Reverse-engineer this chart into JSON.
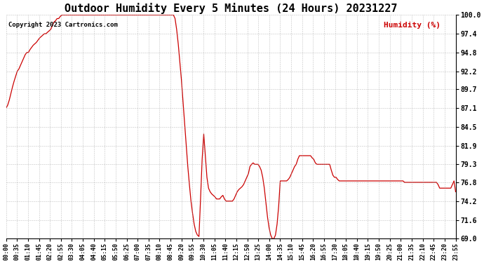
{
  "title": "Outdoor Humidity Every 5 Minutes (24 Hours) 20231227",
  "copyright": "Copyright 2023 Cartronics.com",
  "ylabel": "Humidity (%)",
  "line_color": "#cc0000",
  "bg_color": "#ffffff",
  "grid_color": "#999999",
  "title_fontsize": 11,
  "yticks": [
    69.0,
    71.6,
    74.2,
    76.8,
    79.3,
    81.9,
    84.5,
    87.1,
    89.7,
    92.2,
    94.8,
    97.4,
    100.0
  ],
  "ylim": [
    69.0,
    100.0
  ],
  "humidity_values": [
    87.1,
    87.5,
    88.2,
    89.1,
    90.0,
    90.8,
    91.5,
    92.2,
    92.5,
    93.0,
    93.5,
    94.0,
    94.5,
    94.8,
    94.8,
    95.2,
    95.5,
    95.8,
    96.0,
    96.2,
    96.5,
    96.8,
    97.0,
    97.2,
    97.4,
    97.4,
    97.6,
    97.8,
    98.0,
    98.5,
    99.0,
    99.2,
    99.5,
    99.5,
    99.8,
    100.0,
    100.0,
    100.0,
    100.0,
    100.0,
    100.0,
    100.0,
    100.0,
    100.0,
    100.0,
    100.0,
    100.0,
    100.0,
    100.0,
    100.0,
    100.0,
    100.0,
    100.0,
    100.0,
    100.0,
    100.0,
    100.0,
    100.0,
    100.0,
    100.0,
    100.0,
    100.0,
    100.0,
    100.0,
    100.0,
    100.0,
    100.0,
    100.0,
    100.0,
    100.0,
    100.0,
    100.0,
    100.0,
    100.0,
    100.0,
    100.0,
    100.0,
    100.0,
    100.0,
    100.0,
    100.0,
    100.0,
    100.0,
    100.0,
    100.0,
    100.0,
    100.0,
    100.0,
    100.0,
    100.0,
    100.0,
    100.0,
    100.0,
    100.0,
    100.0,
    100.0,
    100.0,
    100.0,
    100.0,
    100.0,
    100.0,
    100.0,
    100.0,
    100.0,
    100.0,
    100.0,
    99.5,
    98.0,
    96.0,
    93.5,
    91.0,
    88.0,
    85.0,
    82.0,
    79.0,
    76.5,
    74.2,
    72.5,
    71.0,
    70.0,
    69.5,
    69.3,
    74.5,
    80.0,
    83.5,
    80.5,
    77.5,
    76.0,
    75.5,
    75.2,
    75.0,
    74.8,
    74.5,
    74.5,
    74.5,
    74.8,
    75.0,
    74.5,
    74.2,
    74.2,
    74.2,
    74.2,
    74.2,
    74.5,
    75.0,
    75.5,
    75.8,
    76.0,
    76.2,
    76.5,
    77.0,
    77.5,
    78.0,
    79.0,
    79.3,
    79.5,
    79.3,
    79.3,
    79.3,
    79.0,
    78.5,
    77.5,
    76.0,
    74.0,
    72.0,
    70.5,
    69.5,
    69.0,
    69.0,
    69.5,
    71.0,
    73.5,
    77.0,
    77.0,
    77.0,
    77.0,
    77.0,
    77.2,
    77.5,
    78.0,
    78.5,
    79.0,
    79.3,
    80.0,
    80.5,
    80.5,
    80.5,
    80.5,
    80.5,
    80.5,
    80.5,
    80.5,
    80.2,
    80.0,
    79.5,
    79.3,
    79.3,
    79.3,
    79.3,
    79.3,
    79.3,
    79.3,
    79.3,
    79.3,
    78.5,
    77.8,
    77.5,
    77.5,
    77.2,
    77.0,
    77.0,
    77.0,
    77.0,
    77.0,
    77.0,
    77.0,
    77.0,
    77.0,
    77.0,
    77.0,
    77.0,
    77.0,
    77.0,
    77.0,
    77.0,
    77.0,
    77.0,
    77.0,
    77.0,
    77.0,
    77.0,
    77.0,
    77.0,
    77.0,
    77.0,
    77.0,
    77.0,
    77.0,
    77.0,
    77.0,
    77.0,
    77.0,
    77.0,
    77.0,
    77.0,
    77.0,
    77.0,
    77.0,
    77.0,
    77.0,
    76.8,
    76.8,
    76.8,
    76.8,
    76.8,
    76.8,
    76.8,
    76.8,
    76.8,
    76.8,
    76.8,
    76.8,
    76.8,
    76.8,
    76.8,
    76.8,
    76.8,
    76.8,
    76.8,
    76.8,
    76.8,
    76.5,
    76.0,
    76.0,
    76.0,
    76.0,
    76.0,
    76.0,
    76.0,
    76.0,
    76.5,
    77.0,
    75.5
  ],
  "xtick_labels": [
    "00:00",
    "00:35",
    "01:10",
    "01:45",
    "02:20",
    "02:55",
    "03:30",
    "04:05",
    "04:40",
    "05:15",
    "05:50",
    "06:25",
    "07:00",
    "07:35",
    "08:10",
    "08:45",
    "09:20",
    "09:55",
    "10:30",
    "11:05",
    "11:40",
    "12:15",
    "12:50",
    "13:25",
    "14:00",
    "14:35",
    "15:10",
    "15:45",
    "16:20",
    "16:55",
    "17:30",
    "18:05",
    "18:40",
    "19:15",
    "19:50",
    "20:25",
    "21:00",
    "21:35",
    "22:10",
    "22:45",
    "23:20",
    "23:55"
  ]
}
